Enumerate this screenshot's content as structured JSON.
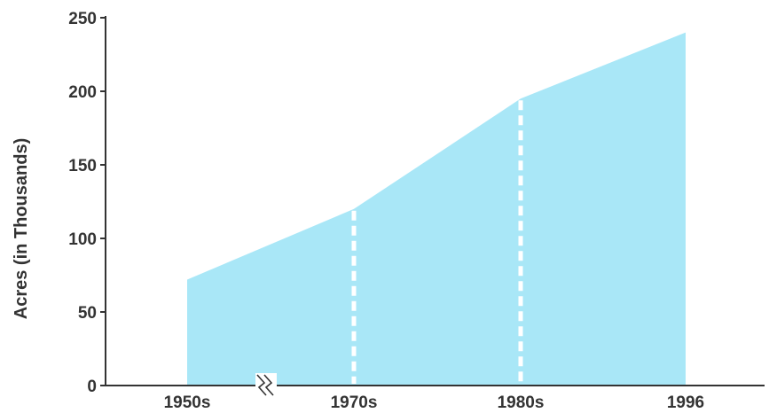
{
  "chart_data": {
    "type": "area",
    "title": "",
    "xlabel": "",
    "ylabel": "Acres (in Thousands)",
    "categories": [
      "1950s",
      "1970s",
      "1980s",
      "1996"
    ],
    "values": [
      72,
      120,
      195,
      240
    ],
    "ylim": [
      0,
      250
    ],
    "y_ticks": [
      "0",
      "50",
      "100",
      "150",
      "200",
      "250"
    ],
    "axis_break_between": [
      "1950s",
      "1970s"
    ],
    "dashed_dividers_at": [
      "1970s",
      "1980s"
    ],
    "grid": false,
    "legend": "none",
    "colors": {
      "area": "#a9e7f7",
      "axis": "#333333",
      "divider": "#ffffff"
    }
  }
}
